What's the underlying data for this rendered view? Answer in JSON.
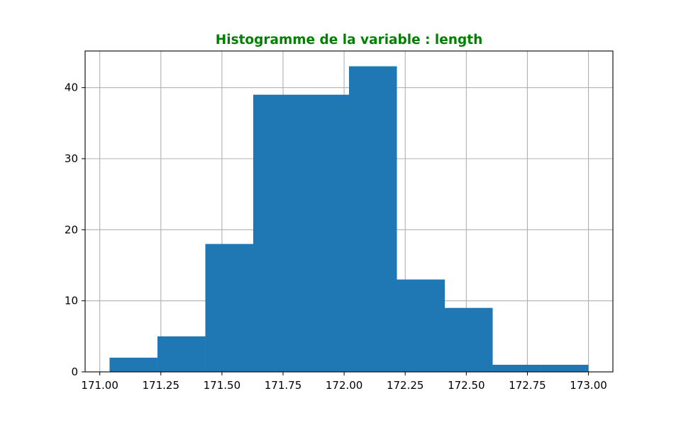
{
  "chart_data": {
    "type": "bar",
    "title": "Histogramme de la variable : length",
    "xlabel": "",
    "ylabel": "",
    "bins": [
      {
        "x0": 171.04,
        "x1": 171.236,
        "count": 2
      },
      {
        "x0": 171.236,
        "x1": 171.432,
        "count": 5
      },
      {
        "x0": 171.432,
        "x1": 171.628,
        "count": 18
      },
      {
        "x0": 171.628,
        "x1": 171.824,
        "count": 39
      },
      {
        "x0": 171.824,
        "x1": 172.02,
        "count": 39
      },
      {
        "x0": 172.02,
        "x1": 172.216,
        "count": 43
      },
      {
        "x0": 172.216,
        "x1": 172.412,
        "count": 13
      },
      {
        "x0": 172.412,
        "x1": 172.608,
        "count": 9
      },
      {
        "x0": 172.608,
        "x1": 172.804,
        "count": 1
      },
      {
        "x0": 172.804,
        "x1": 173.0,
        "count": 1
      }
    ],
    "xlim": [
      170.94,
      173.1
    ],
    "ylim": [
      0,
      45.15
    ],
    "x_ticks": [
      171.0,
      171.25,
      171.5,
      171.75,
      172.0,
      172.25,
      172.5,
      172.75,
      173.0
    ],
    "x_tick_labels": [
      "171.00",
      "171.25",
      "171.50",
      "171.75",
      "172.00",
      "172.25",
      "172.50",
      "172.75",
      "173.00"
    ],
    "y_ticks": [
      0,
      10,
      20,
      30,
      40
    ],
    "y_tick_labels": [
      "0",
      "10",
      "20",
      "30",
      "40"
    ],
    "grid": true,
    "colors": {
      "bar": "#1f77b4",
      "grid": "#b0b0b0",
      "title": "#008000",
      "axis": "#000000"
    }
  }
}
